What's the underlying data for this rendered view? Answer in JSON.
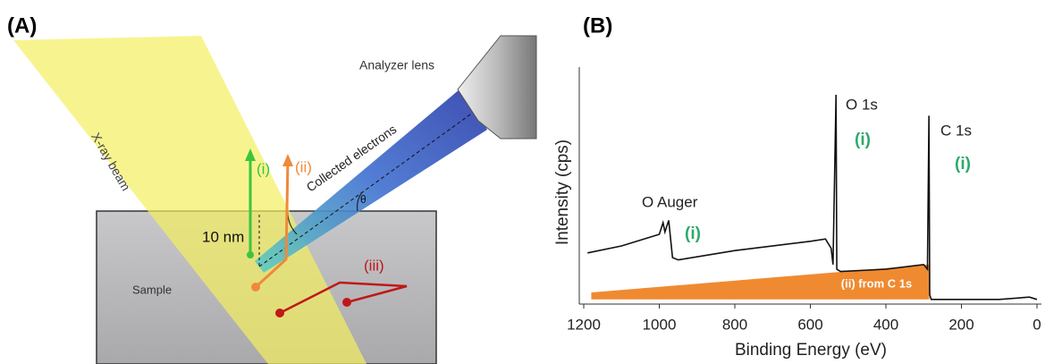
{
  "panel_a": {
    "label": "(A)",
    "beam": "X-ray beam",
    "lens": "Analyzer lens",
    "electrons": "Collected electrons",
    "path_i": "(i)",
    "path_ii": "(ii)",
    "path_iii": "(iii)",
    "depth": "10 nm",
    "sample": "Sample",
    "angle": "θ"
  },
  "chart_data": {
    "type": "line",
    "panel_label": "(B)",
    "x_label": "Binding Energy (eV)",
    "y_label": "Intensity (cps)",
    "xlim": [
      1200,
      0
    ],
    "xticks": [
      1200,
      1000,
      800,
      600,
      400,
      200,
      0
    ],
    "ylim": [
      0,
      100
    ],
    "annotations": [
      "O 1s",
      "C 1s",
      "O Auger",
      "(i)",
      "(i)",
      "(i)"
    ],
    "series": [
      {
        "color": "#111111",
        "x": [
          1190,
          1100,
          1000,
          990,
          985,
          975,
          965,
          950,
          800,
          600,
          560,
          545,
          540,
          532,
          530,
          520,
          400,
          300,
          290,
          286,
          284,
          280,
          100,
          20,
          0
        ],
        "values": [
          22,
          25,
          30,
          35,
          31,
          36,
          20,
          19,
          23,
          27,
          28,
          24,
          17,
          90,
          15,
          14,
          15,
          17,
          15,
          81,
          4,
          2,
          2,
          3,
          2
        ]
      },
      {
        "type": "area",
        "name": "(ii) from C 1s",
        "color": "#f08a30",
        "x": [
          1180,
          285
        ],
        "values": [
          5,
          17
        ],
        "lower": [
          2,
          2
        ]
      }
    ]
  }
}
